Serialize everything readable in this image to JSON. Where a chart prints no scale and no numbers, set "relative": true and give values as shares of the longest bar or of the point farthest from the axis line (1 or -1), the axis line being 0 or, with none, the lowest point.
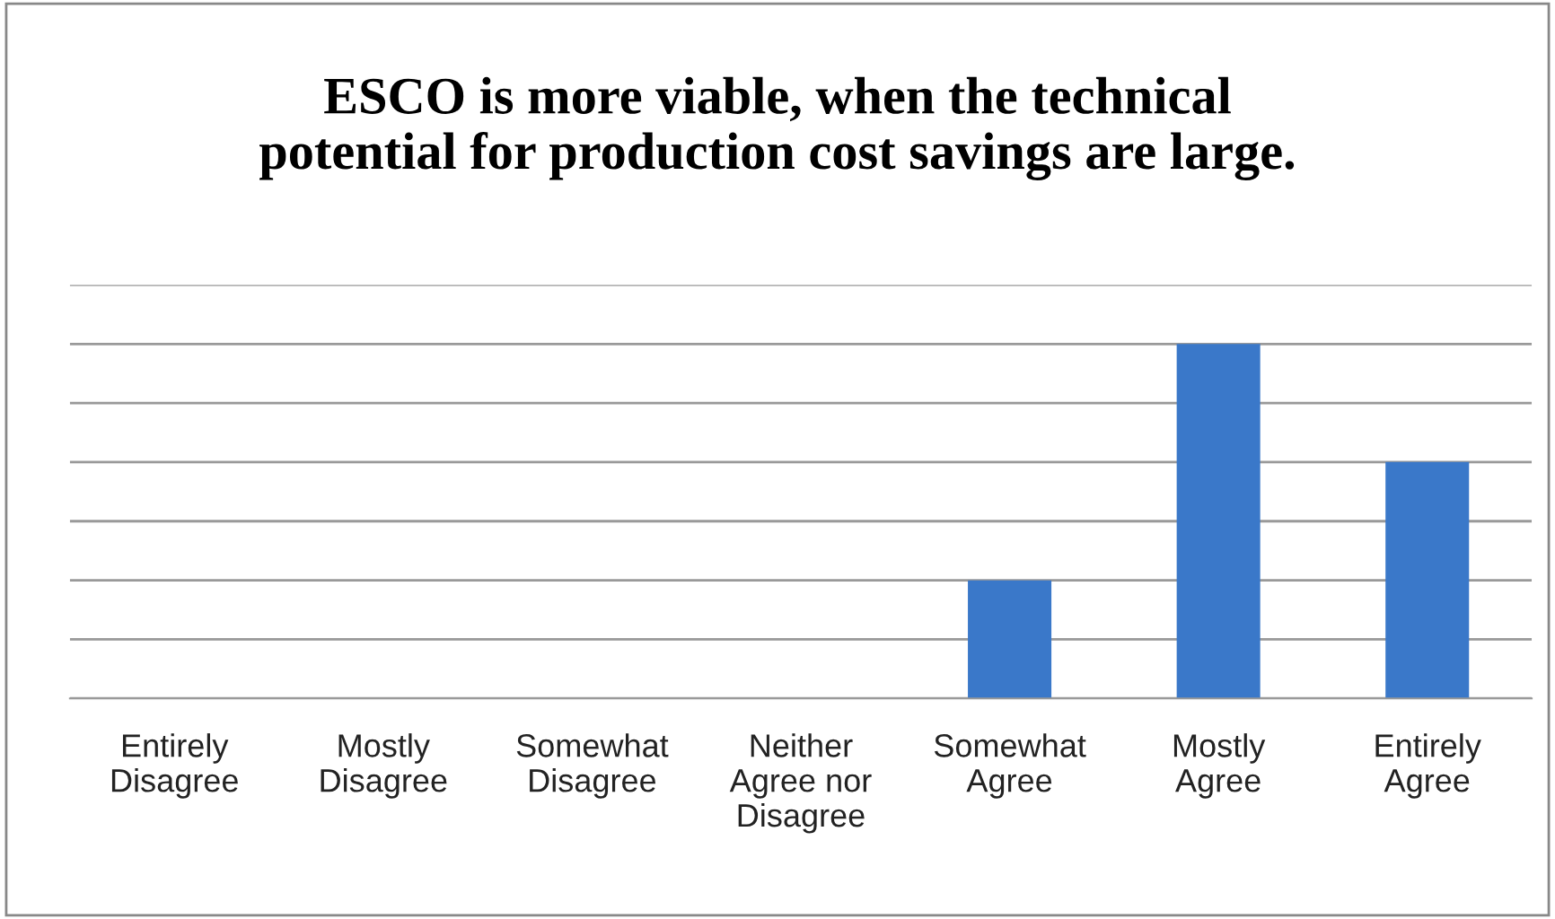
{
  "chart_data": {
    "type": "bar",
    "title": "ESCO is more viable, when the technical\npotential for production cost savings are large.",
    "categories": [
      "Entirely\nDisagree",
      "Mostly\nDisagree",
      "Somewhat\nDisagree",
      "Neither\nAgree nor\nDisagree",
      "Somewhat\nAgree",
      "Mostly\nAgree",
      "Entirely\nAgree"
    ],
    "values": [
      0,
      0,
      0,
      0,
      0.333,
      1,
      0.667
    ],
    "color": "#3a78c9",
    "relative": true,
    "grid": "y",
    "legend": false
  }
}
